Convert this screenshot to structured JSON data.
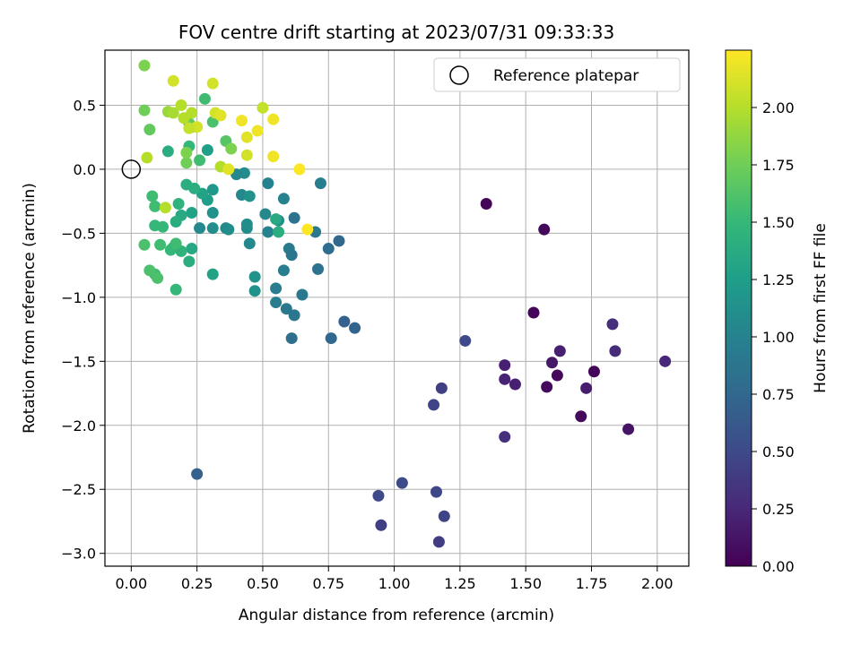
{
  "chart_data": {
    "type": "scatter",
    "title": "FOV centre drift starting at 2023/07/31 09:33:33",
    "xlabel": "Angular distance from reference (arcmin)",
    "ylabel": "Rotation from reference (arcmin)",
    "xlim": [
      -0.1,
      2.12
    ],
    "ylim": [
      -3.1,
      0.93
    ],
    "x_ticks": [
      0.0,
      0.25,
      0.5,
      0.75,
      1.0,
      1.25,
      1.5,
      1.75,
      2.0
    ],
    "x_tick_labels": [
      "0.00",
      "0.25",
      "0.50",
      "0.75",
      "1.00",
      "1.25",
      "1.50",
      "1.75",
      "2.00"
    ],
    "y_ticks": [
      0.5,
      0.0,
      -0.5,
      -1.0,
      -1.5,
      -2.0,
      -2.5,
      -3.0
    ],
    "y_tick_labels": [
      "0.5",
      "0.0",
      "−0.5",
      "−1.0",
      "−1.5",
      "−2.0",
      "−2.5",
      "−3.0"
    ],
    "grid": true,
    "legend": {
      "position": "top-right",
      "entries": [
        "Reference platepar"
      ]
    },
    "reference_point": {
      "x": 0.0,
      "y": 0.0
    },
    "colorbar": {
      "label": "Hours from first FF file",
      "colormap": "viridis",
      "range": [
        0.0,
        2.25
      ],
      "ticks": [
        0.0,
        0.25,
        0.5,
        0.75,
        1.0,
        1.25,
        1.5,
        1.75,
        2.0
      ],
      "tick_labels": [
        "0.00",
        "0.25",
        "0.50",
        "0.75",
        "1.00",
        "1.25",
        "1.50",
        "1.75",
        "2.00"
      ]
    },
    "points": [
      [
        1.35,
        -0.27,
        0.02
      ],
      [
        1.57,
        -0.47,
        0.05
      ],
      [
        1.53,
        -1.12,
        0.03
      ],
      [
        1.62,
        -1.61,
        0.04
      ],
      [
        1.58,
        -1.7,
        0.06
      ],
      [
        1.71,
        -1.93,
        0.05
      ],
      [
        1.76,
        -1.58,
        0.03
      ],
      [
        1.6,
        -1.51,
        0.15
      ],
      [
        1.63,
        -1.42,
        0.2
      ],
      [
        1.73,
        -1.71,
        0.18
      ],
      [
        1.89,
        -2.03,
        0.12
      ],
      [
        1.83,
        -1.21,
        0.3
      ],
      [
        1.84,
        -1.42,
        0.28
      ],
      [
        2.03,
        -1.5,
        0.25
      ],
      [
        1.42,
        -1.53,
        0.2
      ],
      [
        1.42,
        -1.64,
        0.22
      ],
      [
        1.46,
        -1.68,
        0.2
      ],
      [
        1.42,
        -2.09,
        0.3
      ],
      [
        1.27,
        -1.34,
        0.5
      ],
      [
        1.18,
        -1.71,
        0.42
      ],
      [
        1.15,
        -1.84,
        0.45
      ],
      [
        0.94,
        -2.55,
        0.5
      ],
      [
        1.03,
        -2.45,
        0.52
      ],
      [
        1.16,
        -2.52,
        0.48
      ],
      [
        1.19,
        -2.71,
        0.45
      ],
      [
        0.95,
        -2.78,
        0.42
      ],
      [
        1.17,
        -2.91,
        0.4
      ],
      [
        0.25,
        -2.38,
        0.7
      ],
      [
        0.81,
        -1.19,
        0.7
      ],
      [
        0.85,
        -1.24,
        0.72
      ],
      [
        0.76,
        -1.32,
        0.75
      ],
      [
        0.61,
        -1.32,
        0.82
      ],
      [
        0.79,
        -0.56,
        0.75
      ],
      [
        0.75,
        -0.62,
        0.8
      ],
      [
        0.71,
        -0.78,
        0.85
      ],
      [
        0.62,
        -1.14,
        0.88
      ],
      [
        0.59,
        -1.09,
        0.9
      ],
      [
        0.55,
        -1.04,
        0.95
      ],
      [
        0.65,
        -0.98,
        0.9
      ],
      [
        0.55,
        -0.93,
        0.95
      ],
      [
        0.62,
        -0.38,
        0.85
      ],
      [
        0.6,
        -0.62,
        0.92
      ],
      [
        0.7,
        -0.49,
        0.9
      ],
      [
        0.72,
        -0.11,
        0.95
      ],
      [
        0.61,
        -0.67,
        0.88
      ],
      [
        0.58,
        -0.79,
        0.95
      ],
      [
        0.52,
        -0.11,
        1.0
      ],
      [
        0.52,
        -0.49,
        1.0
      ],
      [
        0.51,
        -0.35,
        1.05
      ],
      [
        0.58,
        -0.23,
        1.0
      ],
      [
        0.56,
        -0.4,
        1.1
      ],
      [
        0.44,
        -0.46,
        1.1
      ],
      [
        0.45,
        -0.58,
        1.05
      ],
      [
        0.47,
        -0.84,
        1.15
      ],
      [
        0.47,
        -0.95,
        1.15
      ],
      [
        0.42,
        -0.2,
        1.05
      ],
      [
        0.43,
        -0.03,
        1.1
      ],
      [
        0.4,
        -0.04,
        1.05
      ],
      [
        0.45,
        -0.21,
        1.15
      ],
      [
        0.44,
        -0.43,
        1.1
      ],
      [
        0.36,
        -0.46,
        1.05
      ],
      [
        0.37,
        -0.47,
        1.1
      ],
      [
        0.31,
        -0.16,
        1.2
      ],
      [
        0.31,
        -0.34,
        1.15
      ],
      [
        0.31,
        -0.46,
        1.1
      ],
      [
        0.26,
        -0.46,
        1.05
      ],
      [
        0.29,
        -0.24,
        1.25
      ],
      [
        0.27,
        -0.19,
        1.3
      ],
      [
        0.29,
        0.15,
        1.25
      ],
      [
        0.31,
        -0.82,
        1.3
      ],
      [
        0.55,
        -0.39,
        1.35
      ],
      [
        0.56,
        -0.49,
        1.4
      ],
      [
        0.23,
        -0.34,
        1.3
      ],
      [
        0.19,
        -0.36,
        1.35
      ],
      [
        0.23,
        -0.62,
        1.35
      ],
      [
        0.22,
        -0.72,
        1.4
      ],
      [
        0.17,
        -0.41,
        1.4
      ],
      [
        0.16,
        -0.61,
        1.45
      ],
      [
        0.19,
        -0.64,
        1.45
      ],
      [
        0.18,
        -0.27,
        1.45
      ],
      [
        0.21,
        -0.12,
        1.4
      ],
      [
        0.24,
        -0.15,
        1.4
      ],
      [
        0.15,
        -0.63,
        1.5
      ],
      [
        0.11,
        -0.59,
        1.55
      ],
      [
        0.12,
        -0.45,
        1.5
      ],
      [
        0.09,
        -0.44,
        1.5
      ],
      [
        0.08,
        -0.21,
        1.55
      ],
      [
        0.09,
        -0.29,
        1.55
      ],
      [
        0.09,
        -0.82,
        1.55
      ],
      [
        0.07,
        -0.79,
        1.6
      ],
      [
        0.1,
        -0.85,
        1.6
      ],
      [
        0.05,
        -0.59,
        1.6
      ],
      [
        0.17,
        -0.94,
        1.5
      ],
      [
        0.17,
        -0.58,
        1.55
      ],
      [
        0.14,
        0.14,
        1.4
      ],
      [
        0.22,
        0.18,
        1.5
      ],
      [
        0.23,
        0.33,
        1.65
      ],
      [
        0.22,
        0.36,
        1.7
      ],
      [
        0.28,
        0.55,
        1.55
      ],
      [
        0.31,
        0.37,
        1.6
      ],
      [
        0.26,
        0.07,
        1.55
      ],
      [
        0.21,
        0.05,
        1.75
      ],
      [
        0.21,
        0.13,
        1.8
      ],
      [
        0.36,
        0.22,
        1.65
      ],
      [
        0.38,
        0.16,
        1.8
      ],
      [
        0.07,
        0.31,
        1.7
      ],
      [
        0.05,
        0.46,
        1.75
      ],
      [
        0.05,
        0.81,
        1.8
      ],
      [
        0.14,
        0.45,
        1.9
      ],
      [
        0.16,
        0.44,
        1.95
      ],
      [
        0.19,
        0.5,
        2.0
      ],
      [
        0.2,
        0.4,
        2.0
      ],
      [
        0.23,
        0.44,
        2.0
      ],
      [
        0.25,
        0.33,
        2.1
      ],
      [
        0.22,
        0.32,
        2.05
      ],
      [
        0.16,
        0.69,
        2.1
      ],
      [
        0.31,
        0.67,
        2.1
      ],
      [
        0.32,
        0.44,
        2.1
      ],
      [
        0.34,
        0.42,
        2.15
      ],
      [
        0.34,
        0.02,
        2.0
      ],
      [
        0.06,
        0.09,
        2.0
      ],
      [
        0.13,
        -0.3,
        2.0
      ],
      [
        0.37,
        0.0,
        2.15
      ],
      [
        0.42,
        0.38,
        2.2
      ],
      [
        0.44,
        0.25,
        2.15
      ],
      [
        0.44,
        0.11,
        2.1
      ],
      [
        0.48,
        0.3,
        2.2
      ],
      [
        0.5,
        0.48,
        2.05
      ],
      [
        0.54,
        0.39,
        2.2
      ],
      [
        0.54,
        0.1,
        2.2
      ],
      [
        0.64,
        0.0,
        2.25
      ],
      [
        0.67,
        -0.47,
        2.25
      ]
    ]
  }
}
